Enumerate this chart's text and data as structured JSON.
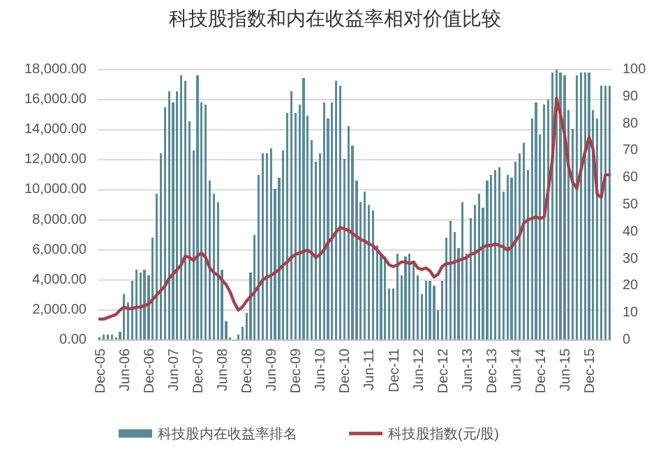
{
  "chart_data": {
    "type": "bar",
    "title": "科技股指数和内在收益率相对价值比较",
    "categories": [
      "Dec-05",
      null,
      null,
      null,
      null,
      null,
      "Jun-06",
      null,
      null,
      null,
      null,
      null,
      "Dec-06",
      null,
      null,
      null,
      null,
      null,
      "Jun-07",
      null,
      null,
      null,
      null,
      null,
      "Dec-07",
      null,
      null,
      null,
      null,
      null,
      "Jun-08",
      null,
      null,
      null,
      null,
      null,
      "Dec-08",
      null,
      null,
      null,
      null,
      null,
      "Jun-09",
      null,
      null,
      null,
      null,
      null,
      "Dec-09",
      null,
      null,
      null,
      null,
      null,
      "Jun-10",
      null,
      null,
      null,
      null,
      null,
      "Dec-10",
      null,
      null,
      null,
      null,
      null,
      "Jun-11",
      null,
      null,
      null,
      null,
      null,
      "Dec-11",
      null,
      null,
      null,
      null,
      null,
      "Jun-12",
      null,
      null,
      null,
      null,
      null,
      "Dec-12",
      null,
      null,
      null,
      null,
      null,
      "Jun-13",
      null,
      null,
      null,
      null,
      null,
      "Dec-13",
      null,
      null,
      null,
      null,
      null,
      "Jun-14",
      null,
      null,
      null,
      null,
      null,
      "Dec-14",
      null,
      null,
      null,
      null,
      null,
      "Jun-15",
      null,
      null,
      null,
      null,
      null,
      "Dec-15",
      null,
      null,
      null,
      null,
      null
    ],
    "series": [
      {
        "name": "科技股内在收益率排名",
        "axis": "y2",
        "color": "#5a8a99",
        "values": [
          1,
          2,
          2,
          2,
          1,
          3,
          17,
          14,
          22,
          26,
          25,
          26,
          24,
          38,
          54,
          69,
          86,
          92,
          88,
          92,
          98,
          96,
          81,
          70,
          98,
          88,
          87,
          59,
          54,
          51,
          26,
          7,
          1,
          0,
          2,
          5,
          10,
          25,
          39,
          61,
          69,
          69,
          71,
          56,
          60,
          70,
          84,
          92,
          84,
          87,
          97,
          83,
          74,
          66,
          69,
          88,
          82,
          88,
          96,
          94,
          67,
          79,
          72,
          59,
          51,
          55,
          50,
          48,
          35,
          32,
          31,
          19,
          19,
          32,
          24,
          31,
          32,
          29,
          24,
          17,
          22,
          22,
          20,
          11,
          22,
          38,
          44,
          40,
          34,
          51,
          32,
          45,
          50,
          54,
          49,
          59,
          61,
          63,
          64,
          55,
          61,
          60,
          66,
          69,
          73,
          63,
          82,
          88,
          76,
          87,
          89,
          99,
          100,
          99,
          98,
          85,
          78,
          98,
          99,
          99,
          99,
          85,
          82,
          94,
          94,
          94
        ]
      },
      {
        "name": "科技股指数(元/股)",
        "type": "line",
        "color": "#a3424c",
        "values": [
          1400,
          1400,
          1500,
          1600,
          1700,
          2000,
          2200,
          2100,
          2100,
          2200,
          2200,
          2300,
          2400,
          2700,
          3000,
          3300,
          3600,
          4100,
          4400,
          4700,
          5000,
          5600,
          5500,
          5300,
          5600,
          5800,
          5500,
          4800,
          4500,
          4300,
          4000,
          3700,
          3200,
          2500,
          2000,
          2200,
          2600,
          2900,
          3200,
          3600,
          4000,
          4200,
          4300,
          4500,
          4700,
          5000,
          5200,
          5500,
          5700,
          5800,
          5900,
          6000,
          5800,
          5500,
          5700,
          6000,
          6500,
          6800,
          7200,
          7500,
          7400,
          7300,
          7100,
          6900,
          6700,
          6600,
          6400,
          6300,
          6000,
          5700,
          5400,
          5000,
          4900,
          5000,
          5200,
          5200,
          5100,
          5200,
          4800,
          4700,
          4800,
          4600,
          4200,
          4400,
          4900,
          5100,
          5100,
          5200,
          5300,
          5400,
          5500,
          5700,
          5800,
          6000,
          6200,
          6300,
          6300,
          6400,
          6300,
          6200,
          6000,
          6200,
          6600,
          7000,
          7800,
          8000,
          8100,
          8200,
          8100,
          8200,
          10000,
          12000,
          16100,
          15000,
          13700,
          11500,
          10500,
          10100,
          11300,
          12500,
          13500,
          12700,
          9700,
          9500,
          11000,
          11000
        ]
      }
    ],
    "ylim": [
      0,
      18000
    ],
    "yticks": [
      {
        "value": 0,
        "label": "0.00"
      },
      {
        "value": 2000,
        "label": "2,000.00"
      },
      {
        "value": 4000,
        "label": "4,000.00"
      },
      {
        "value": 6000,
        "label": "6,000.00"
      },
      {
        "value": 8000,
        "label": "8,000.00"
      },
      {
        "value": 10000,
        "label": "10,000.00"
      },
      {
        "value": 12000,
        "label": "12,000.00"
      },
      {
        "value": 14000,
        "label": "14,000.00"
      },
      {
        "value": 16000,
        "label": "16,000.00"
      },
      {
        "value": 18000,
        "label": "18,000.00"
      }
    ],
    "y2lim": [
      0,
      100
    ],
    "y2ticks": [
      0,
      10,
      20,
      30,
      40,
      50,
      60,
      70,
      80,
      90,
      100
    ],
    "grid": "y",
    "legend": "bottom"
  }
}
